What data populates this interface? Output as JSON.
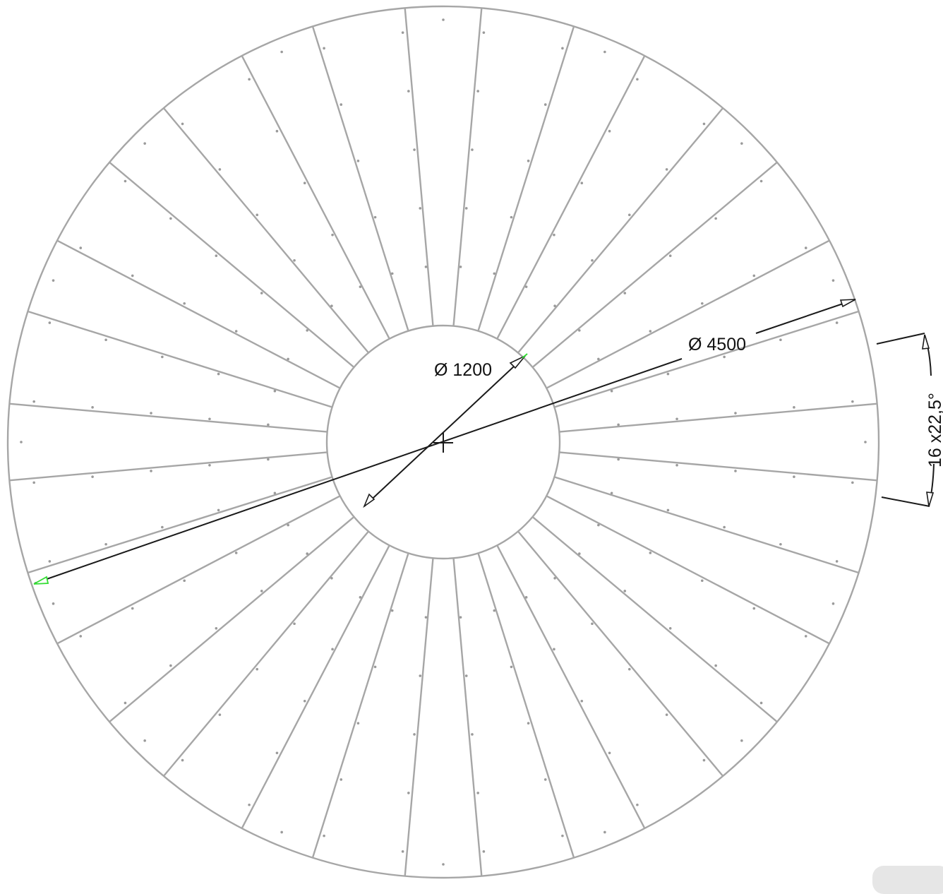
{
  "dimensions": {
    "outer_diameter_label": "Ø 4500",
    "inner_diameter_label": "Ø 1200",
    "angular_label": "16 x22,5°"
  },
  "pattern": {
    "segment_count": 16,
    "segment_angle_deg": 22.5
  },
  "colors": {
    "geometry": "#a6a6a6",
    "dimension": "#1a1a1a",
    "selection": "#33dd33"
  }
}
